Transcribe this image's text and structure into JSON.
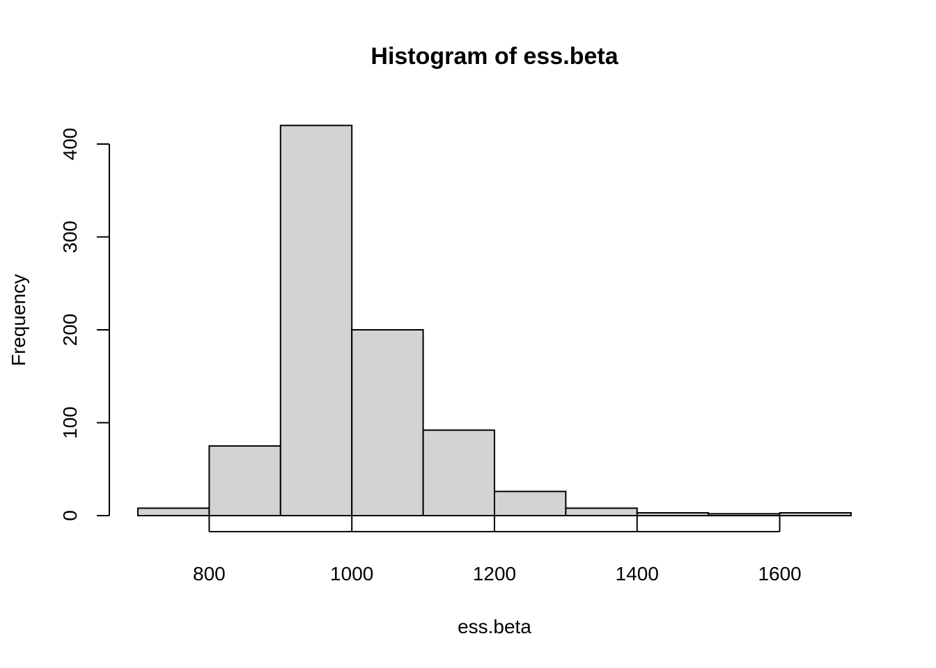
{
  "chart_data": {
    "type": "bar",
    "title": "Histogram of ess.beta",
    "xlabel": "ess.beta",
    "ylabel": "Frequency",
    "bins": [
      {
        "start": 700,
        "end": 800,
        "count": 8
      },
      {
        "start": 800,
        "end": 900,
        "count": 75
      },
      {
        "start": 900,
        "end": 1000,
        "count": 420
      },
      {
        "start": 1000,
        "end": 1100,
        "count": 200
      },
      {
        "start": 1100,
        "end": 1200,
        "count": 92
      },
      {
        "start": 1200,
        "end": 1300,
        "count": 26
      },
      {
        "start": 1300,
        "end": 1400,
        "count": 8
      },
      {
        "start": 1400,
        "end": 1500,
        "count": 3
      },
      {
        "start": 1500,
        "end": 1600,
        "count": 2
      },
      {
        "start": 1600,
        "end": 1700,
        "count": 3
      }
    ],
    "x_ticks": [
      800,
      1000,
      1200,
      1400,
      1600
    ],
    "y_ticks": [
      0,
      100,
      200,
      300,
      400
    ],
    "xlim": [
      700,
      1700
    ],
    "ylim": [
      0,
      420
    ],
    "bar_color": "#d3d3d3",
    "grid": false
  }
}
